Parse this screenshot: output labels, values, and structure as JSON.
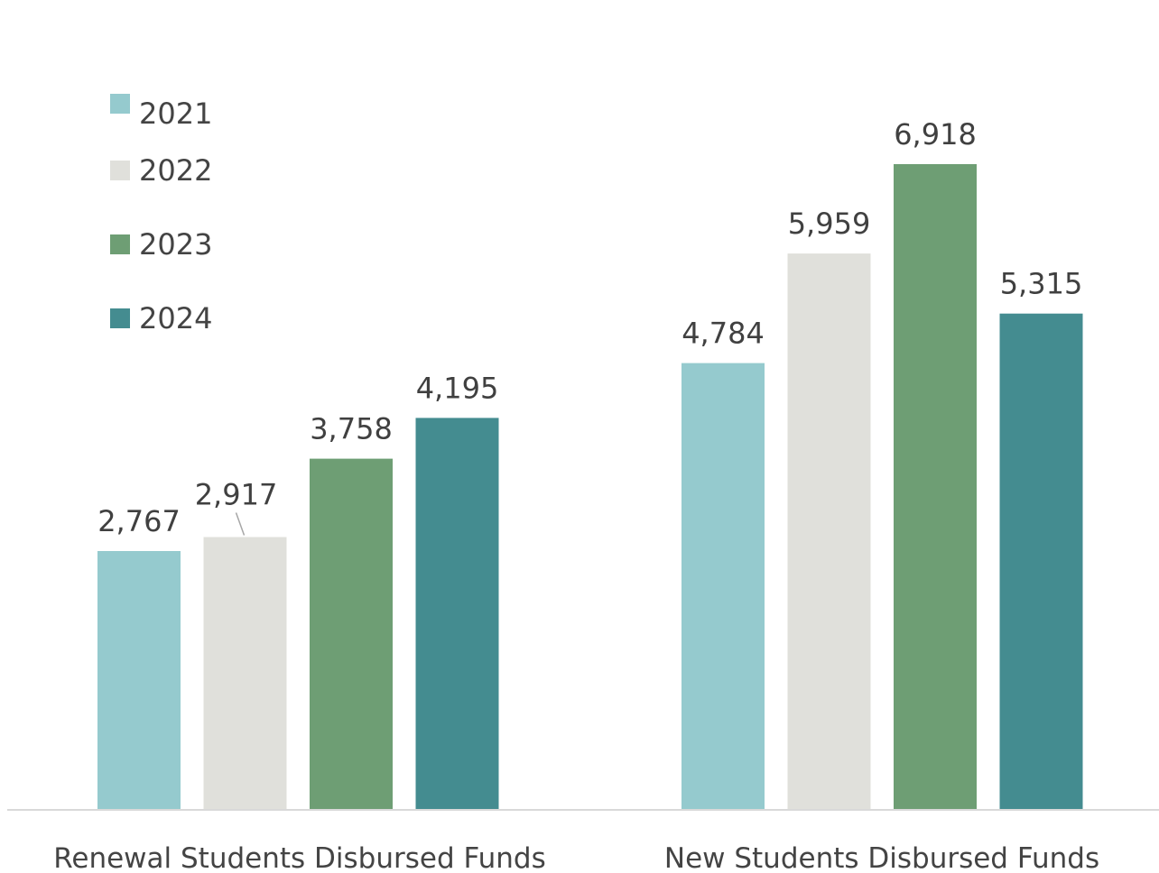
{
  "chart_data": {
    "type": "bar",
    "categories": [
      "Renewal Students Disbursed Funds",
      "New Students Disbursed Funds"
    ],
    "series": [
      {
        "name": "2021",
        "values": [
          2767,
          4784
        ],
        "labels": [
          "2,767",
          "4,784"
        ],
        "color": "#95CACE"
      },
      {
        "name": "2022",
        "values": [
          2917,
          5959
        ],
        "labels": [
          "2,917",
          "5,959"
        ],
        "color": "#E0E0DB"
      },
      {
        "name": "2023",
        "values": [
          3758,
          6918
        ],
        "labels": [
          "3,758",
          "6,918"
        ],
        "color": "#6E9E74"
      },
      {
        "name": "2024",
        "values": [
          4195,
          5315
        ],
        "labels": [
          "4,195",
          "5,315"
        ],
        "color": "#448C90"
      }
    ],
    "title": "",
    "xlabel": "",
    "ylabel": "",
    "ylim": [
      0,
      8000
    ],
    "grid": false,
    "legend_position": "top-left",
    "axis_line_color": "#D9D9D9"
  }
}
